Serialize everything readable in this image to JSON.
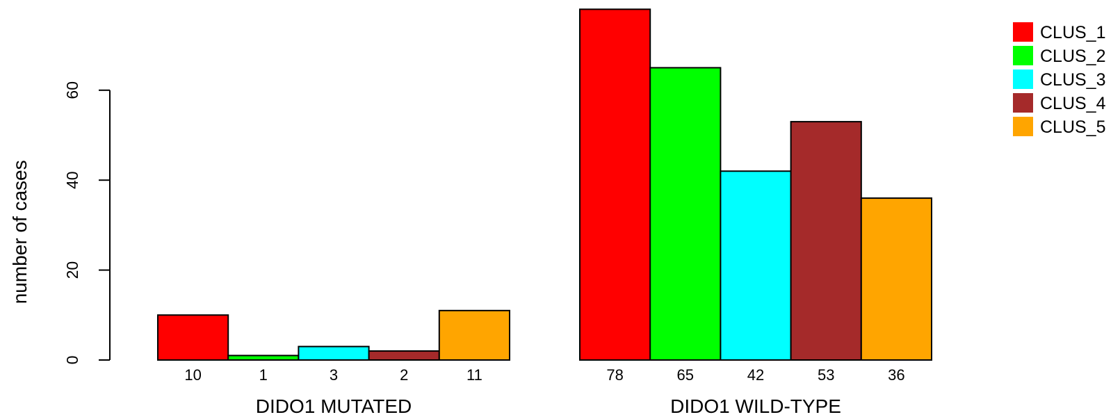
{
  "chart_data": {
    "type": "bar",
    "ylabel": "number of cases",
    "ylim": [
      0,
      80
    ],
    "y_ticks": [
      0,
      20,
      40,
      60
    ],
    "grid": false,
    "legend_position": "top-right",
    "legend": [
      {
        "name": "CLUS_1",
        "color": "#ff0000"
      },
      {
        "name": "CLUS_2",
        "color": "#00ff00"
      },
      {
        "name": "CLUS_3",
        "color": "#00ffff"
      },
      {
        "name": "CLUS_4",
        "color": "#a52a2a"
      },
      {
        "name": "CLUS_5",
        "color": "#ffa500"
      }
    ],
    "groups": [
      {
        "label": "DIDO1 MUTATED",
        "values": [
          10,
          1,
          3,
          2,
          11
        ]
      },
      {
        "label": "DIDO1 WILD-TYPE",
        "values": [
          78,
          65,
          42,
          53,
          36
        ]
      }
    ]
  }
}
